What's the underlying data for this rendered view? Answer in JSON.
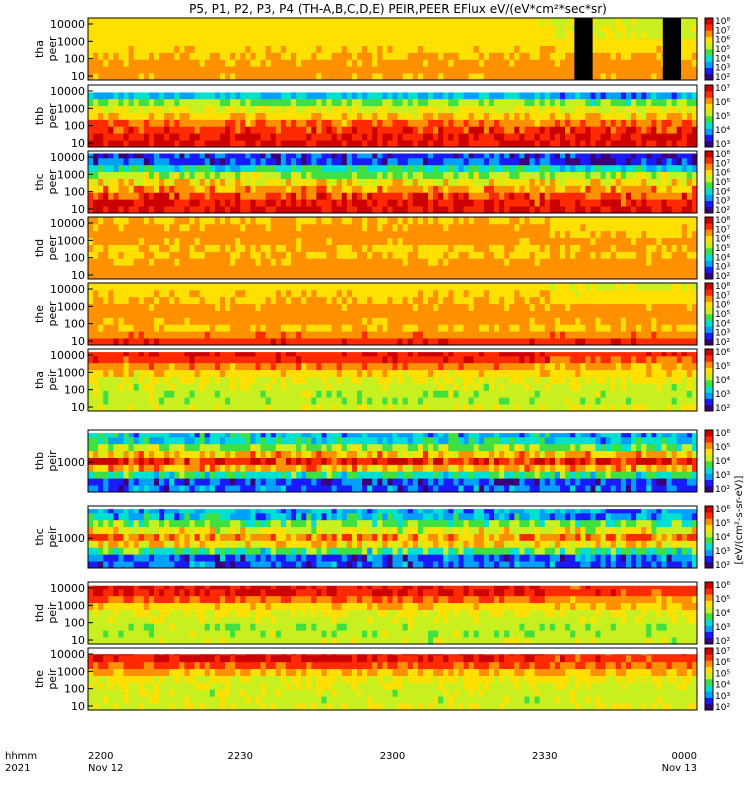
{
  "title": "P5, P1, P2, P3, P4 (TH-A,B,C,D,E) PEIR,PEER EFlux eV/(eV*cm²*sec*sr)",
  "time_axis": {
    "row_label_1": "hhmm",
    "row_label_2": "2021",
    "ticks": [
      {
        "hhmm": "2200",
        "date": "Nov 12"
      },
      {
        "hhmm": "2230",
        "date": ""
      },
      {
        "hhmm": "2300",
        "date": ""
      },
      {
        "hhmm": "2330",
        "date": ""
      },
      {
        "hhmm": "0000",
        "date": "Nov 13"
      }
    ]
  },
  "colorbar_unit_label": "[eV/(cm²-s-sr-eV)]",
  "colors": {
    "scale": [
      "#3a007a",
      "#1a1aff",
      "#00a0ff",
      "#00e0d0",
      "#40e040",
      "#c8f020",
      "#ffe000",
      "#ff9000",
      "#ff2a00",
      "#cc0000"
    ],
    "fill_gap": "#000000"
  },
  "chart_data": {
    "type": "heatmap",
    "x_range": [
      "2021-11-12 22:00",
      "2021-11-13 00:00"
    ],
    "panels": [
      {
        "id": "tha_peer",
        "label_1": "tha",
        "label_2": "peer",
        "yscale": "log",
        "yticks": [
          "10",
          "100",
          "1000",
          "10000"
        ],
        "cbar_ticks": [
          "10²",
          "10³",
          "10⁴",
          "10⁵",
          "10⁶",
          "10⁷",
          "10⁸"
        ],
        "profile": [
          0.72,
          0.74,
          0.72,
          0.7,
          0.68,
          0.66,
          0.65,
          0.64,
          0.63
        ],
        "gaps": [
          [
            0.33,
            0.35
          ],
          [
            0.39,
            0.41
          ]
        ],
        "noise": 0.03,
        "top_strip": 0.0
      },
      {
        "id": "thb_peer",
        "label_1": "thb",
        "label_2": "peer",
        "yscale": "log",
        "yticks": [
          "10",
          "100",
          "1000",
          "10000"
        ],
        "cbar_ticks": [
          "10³",
          "10⁴",
          "10⁵",
          "10⁶",
          "10⁷"
        ],
        "profile": [
          0.92,
          0.9,
          0.86,
          0.78,
          0.68,
          0.6,
          0.52,
          0.3,
          0.28
        ],
        "gaps": [],
        "noise": 0.08,
        "top_strip": 0.12
      },
      {
        "id": "thc_peer",
        "label_1": "thc",
        "label_2": "peer",
        "yscale": "log",
        "yticks": [
          "10",
          "100",
          "1000",
          "10000"
        ],
        "cbar_ticks": [
          "10²",
          "10³",
          "10⁴",
          "10⁵",
          "10⁶",
          "10⁷",
          "10⁸"
        ],
        "profile": [
          0.92,
          0.9,
          0.84,
          0.74,
          0.64,
          0.52,
          0.38,
          0.18,
          0.16
        ],
        "gaps": [],
        "noise": 0.1,
        "top_strip": 0.04
      },
      {
        "id": "thd_peer",
        "label_1": "thd",
        "label_2": "peer",
        "yscale": "log",
        "yticks": [
          "10",
          "100",
          "1000",
          "10000"
        ],
        "cbar_ticks": [
          "10²",
          "10³",
          "10⁴",
          "10⁵",
          "10⁶",
          "10⁷",
          "10⁸"
        ],
        "profile": [
          0.74,
          0.74,
          0.72,
          0.7,
          0.7,
          0.72,
          0.74,
          0.72,
          0.7
        ],
        "gaps": [],
        "noise": 0.03,
        "top_strip": 0.0
      },
      {
        "id": "the_peer",
        "label_1": "the",
        "label_2": "peer",
        "yscale": "log",
        "yticks": [
          "10",
          "100",
          "1000",
          "10000"
        ],
        "cbar_ticks": [
          "10²",
          "10³",
          "10⁴",
          "10⁵",
          "10⁶",
          "10⁷",
          "10⁸"
        ],
        "profile": [
          0.88,
          0.78,
          0.7,
          0.72,
          0.74,
          0.72,
          0.7,
          0.68,
          0.66
        ],
        "gaps": [],
        "noise": 0.03,
        "top_strip": 0.0
      },
      {
        "id": "tha_peir",
        "label_1": "tha",
        "label_2": "peir",
        "yscale": "log",
        "yticks": [
          "10",
          "100",
          "1000",
          "10000"
        ],
        "cbar_ticks": [
          "10²",
          "10³",
          "10⁴",
          "10⁵",
          "10⁶"
        ],
        "profile": [
          0.58,
          0.54,
          0.54,
          0.56,
          0.6,
          0.66,
          0.76,
          0.86,
          0.9
        ],
        "gaps": [],
        "noise": 0.06,
        "top_strip": 0.05
      },
      {
        "id": "thb_peir",
        "label_1": "thb",
        "label_2": "peir",
        "yscale": "log",
        "yticks": [
          "1000"
        ],
        "cbar_ticks": [
          "10²",
          "10³",
          "10⁴",
          "10⁵",
          "10⁶"
        ],
        "profile": [
          0.2,
          0.18,
          0.4,
          0.7,
          0.88,
          0.7,
          0.52,
          0.36,
          0.3
        ],
        "gaps": [],
        "noise": 0.12,
        "top_strip": 0.05
      },
      {
        "id": "thc_peir",
        "label_1": "thc",
        "label_2": "peir",
        "yscale": "log",
        "yticks": [
          "1000"
        ],
        "cbar_ticks": [
          "10²",
          "10³",
          "10⁴",
          "10⁵",
          "10⁶"
        ],
        "profile": [
          0.2,
          0.2,
          0.42,
          0.66,
          0.76,
          0.6,
          0.48,
          0.3,
          0.28
        ],
        "gaps": [],
        "noise": 0.12,
        "top_strip": 0.05
      },
      {
        "id": "thd_peir",
        "label_1": "thd",
        "label_2": "peir",
        "yscale": "log",
        "yticks": [
          "10",
          "100",
          "1000",
          "10000"
        ],
        "cbar_ticks": [
          "10²",
          "10³",
          "10⁴",
          "10⁵",
          "10⁶"
        ],
        "profile": [
          0.56,
          0.54,
          0.54,
          0.56,
          0.6,
          0.68,
          0.8,
          0.9,
          0.9
        ],
        "gaps": [],
        "noise": 0.06,
        "top_strip": 0.06
      },
      {
        "id": "the_peir",
        "label_1": "the",
        "label_2": "peir",
        "yscale": "log",
        "yticks": [
          "10",
          "100",
          "1000",
          "10000"
        ],
        "cbar_ticks": [
          "10²",
          "10³",
          "10⁴",
          "10⁵",
          "10⁶",
          "10⁷"
        ],
        "profile": [
          0.58,
          0.56,
          0.56,
          0.58,
          0.62,
          0.7,
          0.82,
          0.9,
          0.9
        ],
        "gaps": [],
        "noise": 0.06,
        "top_strip": 0.1
      }
    ]
  }
}
